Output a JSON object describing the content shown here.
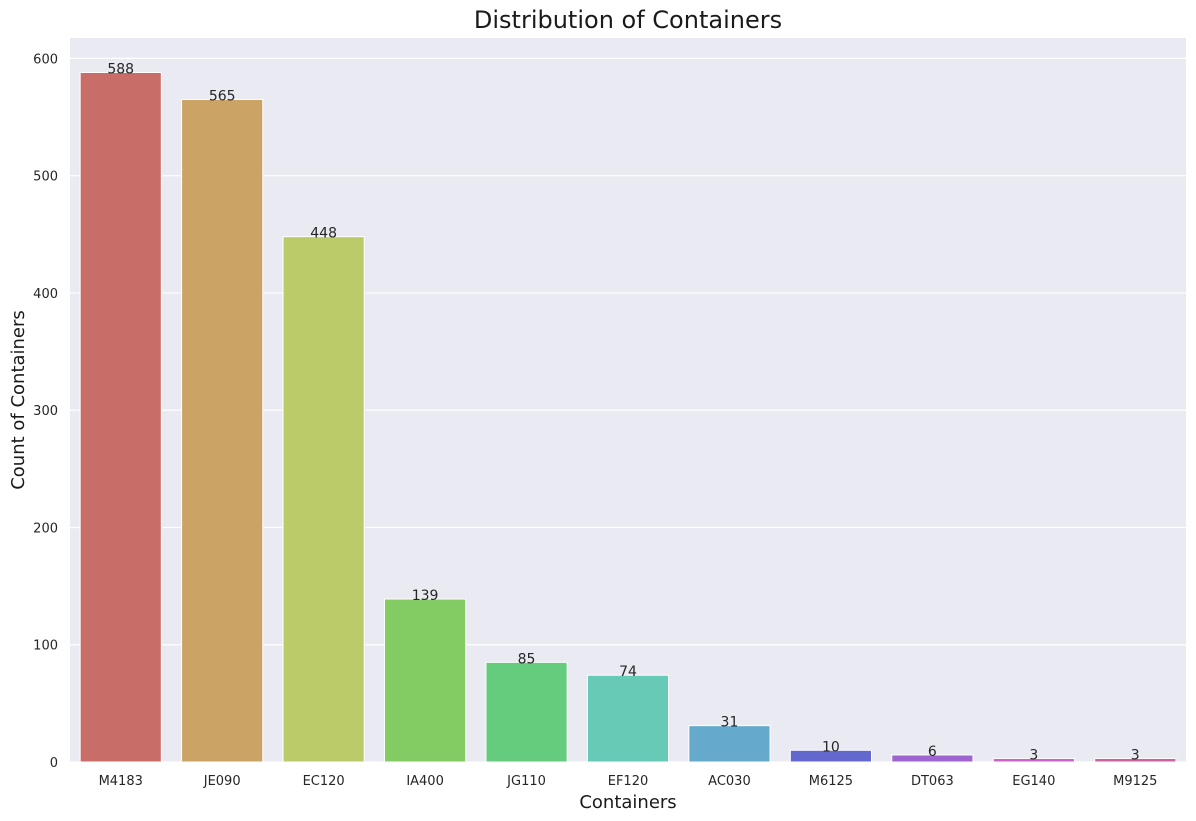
{
  "chart_data": {
    "type": "bar",
    "title": "Distribution of Containers",
    "xlabel": "Containers",
    "ylabel": "Count of Containers",
    "categories": [
      "M4183",
      "JE090",
      "EC120",
      "IA400",
      "JG110",
      "EF120",
      "AC030",
      "M6125",
      "DT063",
      "EG140",
      "M9125"
    ],
    "values": [
      588,
      565,
      448,
      139,
      85,
      74,
      31,
      10,
      6,
      3,
      3
    ],
    "colors": [
      "#c96d68",
      "#cba365",
      "#bccb6a",
      "#83cc64",
      "#66cc7d",
      "#67cab6",
      "#65a9cd",
      "#6368cf",
      "#9e64cf",
      "#cd63c8",
      "#cd62a0"
    ],
    "ylim": [
      0,
      617.4
    ],
    "yticks": [
      0,
      100,
      200,
      300,
      400,
      500,
      600
    ],
    "grid": true,
    "background": "#eaeaf2",
    "grid_color": "#ffffff"
  }
}
